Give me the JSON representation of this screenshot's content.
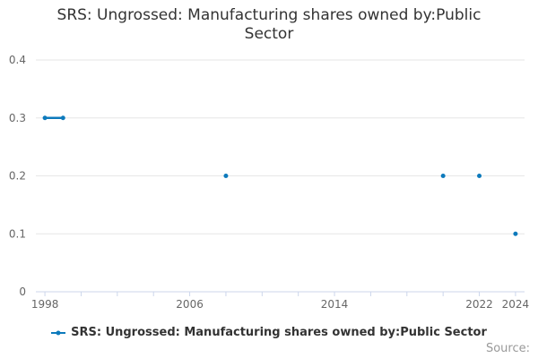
{
  "page": {
    "title": "SRS: Ungrossed: Manufacturing shares owned by:Public Sector",
    "source_label": "Source:"
  },
  "colors": {
    "series_blue": "#0d7abc",
    "gridline": "#e6e6e6",
    "axis_line": "#ccd6eb",
    "axis_label": "#666666",
    "title_text": "#333333",
    "legend_text": "#333333",
    "source_text": "#999999",
    "background": "#ffffff"
  },
  "chart_data": {
    "type": "line",
    "title": "SRS: Ungrossed: Manufacturing shares owned by:Public Sector",
    "xlabel": "",
    "ylabel": "",
    "xlim": [
      1997.5,
      2024.5
    ],
    "ylim": [
      0,
      0.4
    ],
    "grid": true,
    "legend_position": "bottom-center",
    "x_ticks": [
      1998,
      2000,
      2002,
      2004,
      2006,
      2008,
      2010,
      2012,
      2014,
      2016,
      2018,
      2020,
      2022,
      2024
    ],
    "x_tick_labels": [
      {
        "value": 1998,
        "text": "1998"
      },
      {
        "value": 2006,
        "text": "2006"
      },
      {
        "value": 2014,
        "text": "2014"
      },
      {
        "value": 2022,
        "text": "2022"
      },
      {
        "value": 2024,
        "text": "2024"
      }
    ],
    "y_ticks": [
      {
        "value": 0,
        "text": "0"
      },
      {
        "value": 0.1,
        "text": "0.1"
      },
      {
        "value": 0.2,
        "text": "0.2"
      },
      {
        "value": 0.3,
        "text": "0.3"
      },
      {
        "value": 0.4,
        "text": "0.4"
      }
    ],
    "series": [
      {
        "name": "SRS: Ungrossed: Manufacturing shares owned by:Public Sector",
        "color": "#0d7abc",
        "points": [
          [
            1998,
            0.3
          ],
          [
            1999,
            0.3
          ],
          [
            2008,
            0.2
          ],
          [
            2020,
            0.2
          ],
          [
            2022,
            0.2
          ],
          [
            2024,
            0.1
          ]
        ],
        "segments": [
          [
            [
              1998,
              0.3
            ],
            [
              1999,
              0.3
            ]
          ],
          [
            [
              2008,
              0.2
            ]
          ],
          [
            [
              2020,
              0.2
            ]
          ],
          [
            [
              2022,
              0.2
            ]
          ],
          [
            [
              2024,
              0.1
            ]
          ]
        ]
      }
    ]
  }
}
